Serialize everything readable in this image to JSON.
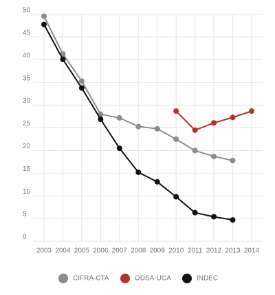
{
  "chart_data": {
    "type": "line",
    "categories": [
      "2003",
      "2004",
      "2005",
      "2006",
      "2007",
      "2008",
      "2009",
      "2010",
      "2011",
      "2012",
      "2013",
      "2014"
    ],
    "series": [
      {
        "name": "CIFRA-CTA",
        "color": "#8c8c8c",
        "values": [
          49.6,
          41.3,
          35.3,
          28.0,
          27.2,
          25.3,
          24.8,
          22.5,
          20.0,
          18.7,
          17.8,
          null
        ]
      },
      {
        "name": "ODSA-UCA",
        "color": "#b0332f",
        "values": [
          null,
          null,
          null,
          null,
          null,
          null,
          null,
          28.7,
          24.5,
          26.1,
          27.3,
          28.7
        ]
      },
      {
        "name": "INDEC",
        "color": "#111111",
        "values": [
          47.8,
          40.1,
          33.8,
          26.9,
          20.5,
          15.2,
          13.1,
          9.8,
          6.3,
          5.4,
          4.7,
          null
        ]
      }
    ],
    "ylim": [
      0,
      50
    ],
    "yticks": [
      0,
      5,
      10,
      15,
      20,
      25,
      30,
      35,
      40,
      45,
      50
    ],
    "grid": true
  }
}
